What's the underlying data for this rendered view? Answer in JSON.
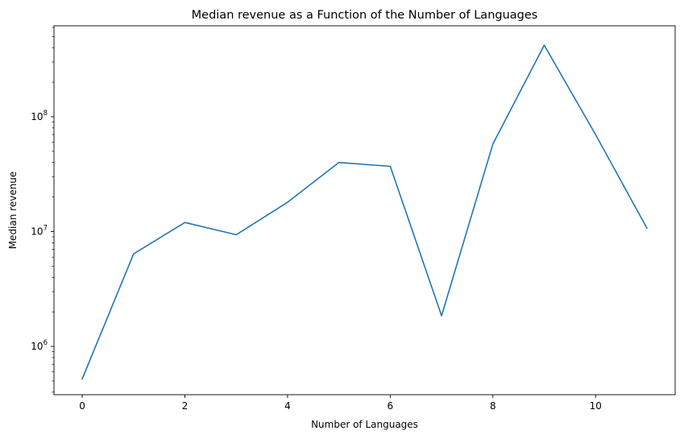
{
  "chart_data": {
    "type": "line",
    "title": "Median revenue as a Function of the Number of Languages",
    "xlabel": "Number of Languages",
    "ylabel": "Median revenue",
    "yscale": "log",
    "grid": false,
    "xlim": [
      -0.55,
      11.55
    ],
    "ylim": [
      380000,
      620000000
    ],
    "xticks": [
      0,
      2,
      4,
      6,
      8,
      10
    ],
    "yticks": [
      {
        "value": 1000000,
        "base": "10",
        "exp": "6"
      },
      {
        "value": 10000000,
        "base": "10",
        "exp": "7"
      },
      {
        "value": 100000000,
        "base": "10",
        "exp": "8"
      }
    ],
    "color": "#1f77b4",
    "series": [
      {
        "x": [
          0,
          1,
          2,
          3,
          4,
          5,
          6,
          7,
          8,
          9,
          10,
          11
        ],
        "y": [
          520000,
          6400000,
          12000000,
          9400000,
          18000000,
          40000000,
          37000000,
          1850000,
          58000000,
          420000000,
          70000000,
          10700000
        ]
      }
    ]
  }
}
